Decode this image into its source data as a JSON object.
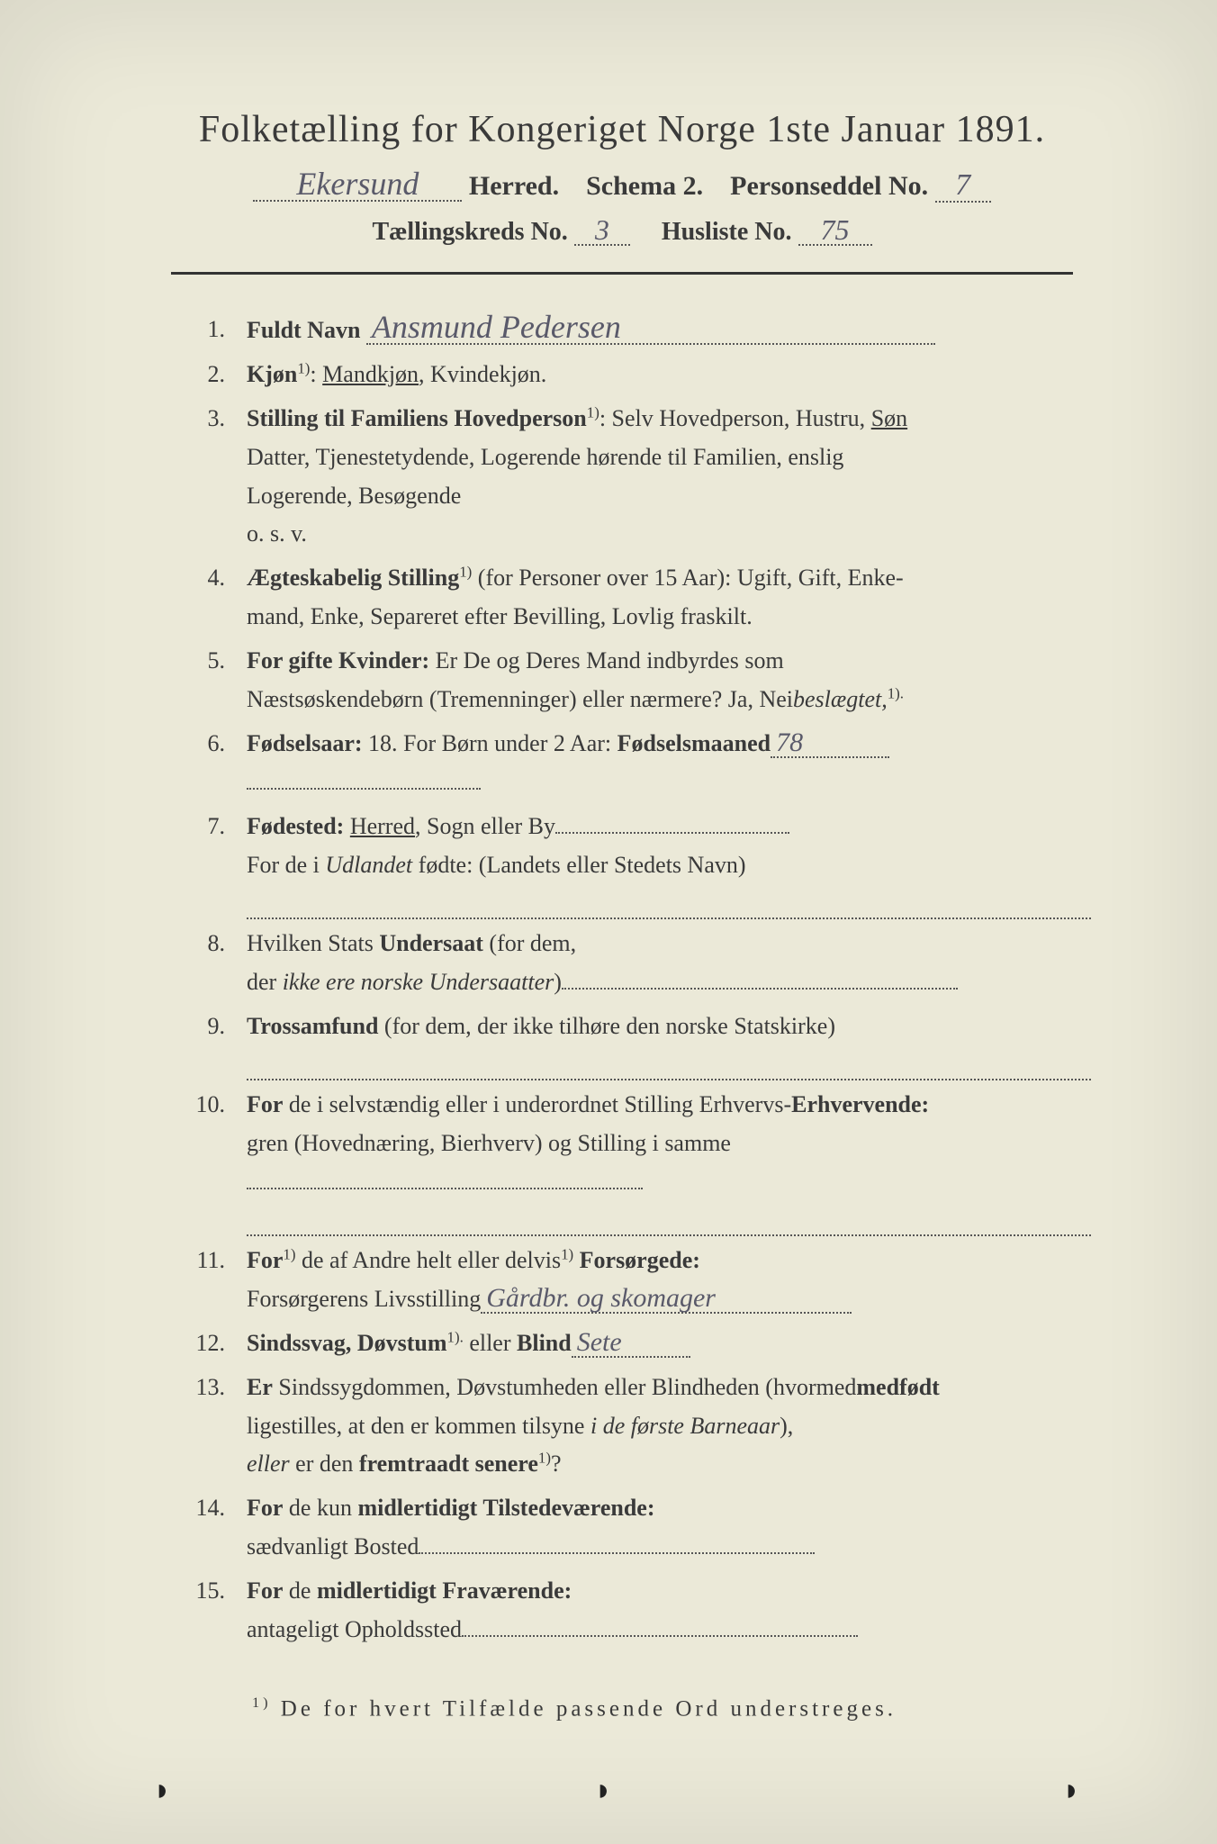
{
  "header": {
    "title": "Folketælling for Kongeriget Norge 1ste Januar 1891.",
    "herred_hand": "Ekersund",
    "herred_label": "Herred.",
    "schema": "Schema 2.",
    "personseddel_label": "Personseddel No.",
    "personseddel_no": "7",
    "kreds_label": "Tællingskreds No.",
    "kreds_no": "3",
    "husliste_label": "Husliste No.",
    "husliste_no": "75"
  },
  "items": [
    {
      "n": "1.",
      "label": "Fuldt Navn",
      "hand": "Ansmund Pedersen"
    },
    {
      "n": "2.",
      "label": "Kjøn",
      "sup": "1)",
      "rest": ": ",
      "opt_under": "Mandkjøn",
      "rest2": ", Kvindekjøn."
    },
    {
      "n": "3.",
      "label": "Stilling til Familiens Hovedperson",
      "sup": "1)",
      "rest": ": Selv Hovedperson, Hustru, ",
      "opt_under": "Søn",
      "cont1": "Datter, Tjenestetydende, Logerende hørende til Familien, enslig",
      "cont2": "Logerende, Besøgende",
      "cont3": "o. s. v."
    },
    {
      "n": "4.",
      "label": "Ægteskabelig Stilling",
      "sup": "1)",
      "rest": " (for Personer over 15 Aar): Ugift, Gift, Enke-",
      "cont1": "mand, Enke, Separeret efter Bevilling, Lovlig fraskilt."
    },
    {
      "n": "5.",
      "label": "For gifte Kvinder:",
      "rest": " Er De og Deres Mand indbyrdes ",
      "ital": "beslægtet,",
      "rest2": " som",
      "cont1": "Næstsøskendebørn (Tremenninger) eller nærmere?  Ja, Nei",
      "cont1sup": "1)."
    },
    {
      "n": "6.",
      "label": "Fødselsaar:",
      "rest": " 18",
      "hand": "78",
      "rest2": ".   For Børn under 2 Aar: ",
      "label2": "Fødselsmaaned",
      "tail_dots": true
    },
    {
      "n": "7.",
      "label": "Fødested:",
      "rest": " ",
      "opt_under": "Herred",
      "rest2": ", Sogn eller By",
      "tail_dots": true,
      "cont1": "For de i ",
      "ital": "Udlandet",
      "cont1b": " fødte: (Landets eller Stedets Navn)",
      "blankline": true
    },
    {
      "n": "8.",
      "plain": "Hvilken Stats ",
      "label": "Undersaat",
      "rest": "  (for dem,",
      "cont1": "der ",
      "ital": "ikke ere norske Undersaatter",
      "cont1b": ")",
      "tail_dots_cont": true
    },
    {
      "n": "9.",
      "label": "Trossamfund",
      "rest": "  (for  dem,  der  ikke  tilhøre  den   norske   Statskirke)",
      "blankline": true
    },
    {
      "n": "10.",
      "label": "For",
      "rest": " de i selvstændig eller i underordnet Stilling ",
      "label2": "Erhvervende:",
      "rest2": " Erhvervs-",
      "cont1": "gren (Hovednæring, Bierhverv) og Stilling i samme",
      "tail_dots_cont": true,
      "blankline": true
    },
    {
      "n": "11.",
      "label": "For",
      "rest": " de af Andre helt",
      "sup": "1)",
      "rest2": " eller delvis",
      "sup2": "1)",
      "rest3": " ",
      "label2": "Forsørgede:",
      "cont1": "Forsørgerens Livsstilling",
      "hand_cont": "Gårdbr. og skomager"
    },
    {
      "n": "12.",
      "label": "Sindssvag, Døvstum",
      "rest": " eller ",
      "label2": "Blind",
      "sup": "1).",
      "hand": "Sete"
    },
    {
      "n": "13.",
      "label": "Er",
      "rest": " Sindssygdommen, Døvstumheden eller Blindheden ",
      "label2": "medfødt",
      "rest2": " (hvormed",
      "cont1": "ligestilles, at den er kommen tilsyne ",
      "ital": "i de første Barneaar",
      "cont1b": "),",
      "cont2_ital": "eller",
      "cont2": " er den ",
      "cont2_bold": "fremtraadt senere",
      "cont2sup": "1)",
      "cont2c": "?"
    },
    {
      "n": "14.",
      "label": "For",
      "rest": " de kun ",
      "label2": "midlertidigt Tilstedeværende:",
      "cont1": "sædvanligt Bosted",
      "tail_dots_cont": true
    },
    {
      "n": "15.",
      "label": "For",
      "rest": " de ",
      "label2": "midlertidigt Fraværende:",
      "cont1": "antageligt Opholdssted",
      "tail_dots_cont": true
    }
  ],
  "footnote": {
    "sup": "1)",
    "text": " De for hvert Tilfælde passende Ord understreges."
  }
}
